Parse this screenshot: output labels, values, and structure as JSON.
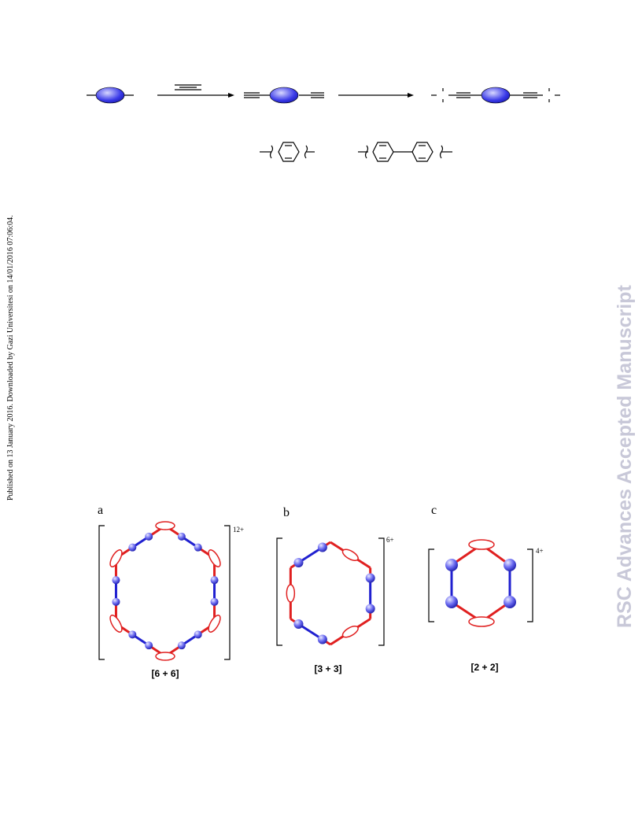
{
  "side_note": "Published on 13 January 2016. Downloaded by Gazi Universitesi on 14/01/2016 07:06:04.",
  "watermark": "RSC Advances Accepted Manuscript",
  "figure": {
    "panels": [
      {
        "label": "a",
        "charge": "12+",
        "caption": "[6 + 6]"
      },
      {
        "label": "b",
        "charge": "6+",
        "caption": "[3 + 3]"
      },
      {
        "label": "c",
        "charge": "4+",
        "caption": "[2 + 2]"
      }
    ]
  }
}
